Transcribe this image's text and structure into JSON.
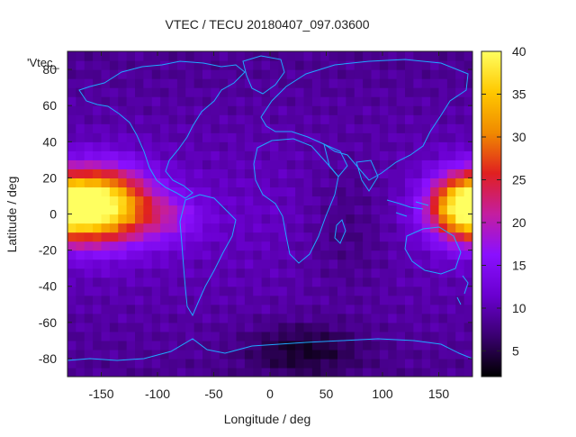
{
  "title": "VTEC / TECU 20180407_097.03600",
  "legend_key": "'Vtec_",
  "chart_data": {
    "type": "heatmap",
    "title": "VTEC / TECU 20180407_097.03600",
    "xlabel": "Longitude / deg",
    "ylabel": "Latitude / deg",
    "xlim": [
      -180,
      180
    ],
    "ylim": [
      -90,
      90
    ],
    "x_ticks": [
      -150,
      -100,
      -50,
      0,
      50,
      100,
      150
    ],
    "y_ticks": [
      -80,
      -60,
      -40,
      -20,
      0,
      20,
      40,
      60,
      80
    ],
    "colorbar": {
      "range": [
        2,
        40
      ],
      "ticks": [
        5,
        10,
        15,
        20,
        25,
        30,
        35,
        40
      ],
      "colors": [
        "#000000",
        "#3a0070",
        "#6a00d0",
        "#8a10ff",
        "#c41ea0",
        "#e02020",
        "#f08a00",
        "#ffc800",
        "#ffff60"
      ]
    },
    "grid": false,
    "legend_position": "top-left",
    "field_features": [
      {
        "lon": -150,
        "lat": 5,
        "dlon": 42,
        "dlat": 20,
        "amp": 30
      },
      {
        "lon": 170,
        "lat": 4,
        "dlon": 30,
        "dlat": 17,
        "amp": 22
      },
      {
        "lon": -90,
        "lat": -2,
        "dlon": 30,
        "dlat": 14,
        "amp": 6
      },
      {
        "lon": 30,
        "lat": -75,
        "dlon": 50,
        "dlat": 14,
        "amp": -5
      },
      {
        "lon": 70,
        "lat": -5,
        "dlon": 40,
        "dlat": 35,
        "amp": -3
      }
    ],
    "field_baseline": 11
  }
}
